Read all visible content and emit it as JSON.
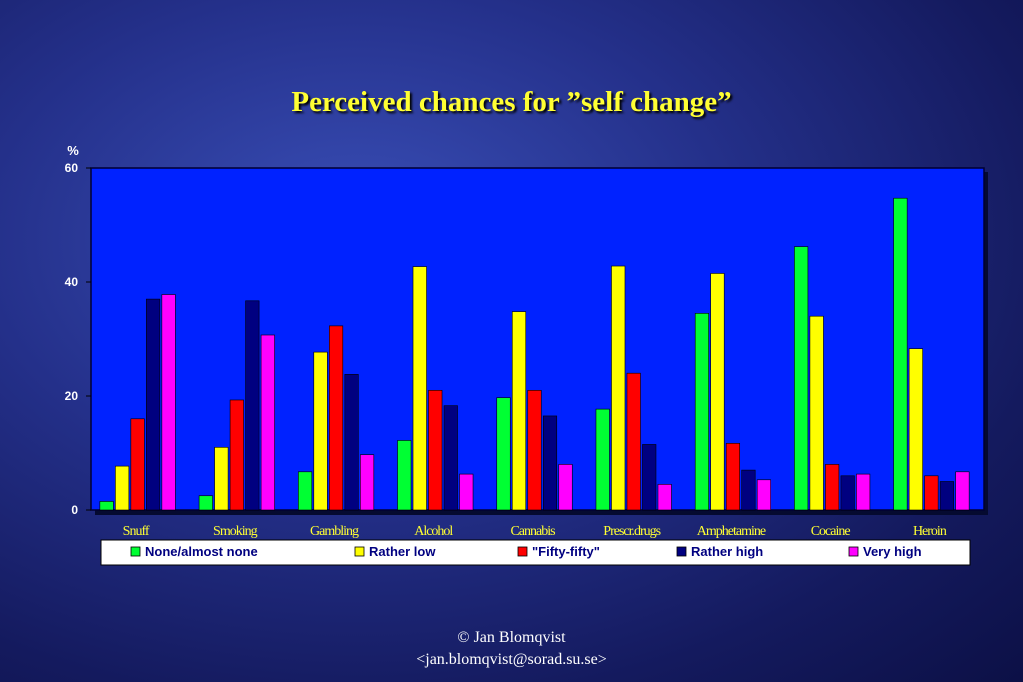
{
  "slide": {
    "title": "Perceived chances for ”self change”"
  },
  "chart_data": {
    "type": "bar",
    "ylabel": "%",
    "ylim": [
      0,
      60
    ],
    "yticks": [
      "0",
      "20",
      "40",
      "60"
    ],
    "categories": [
      "Snuff",
      "Smoking",
      "Gambling",
      "Alcohol",
      "Cannabis",
      "Prescr.drugs",
      "Amphetamine",
      "Cocaine",
      "Heroin"
    ],
    "series": [
      {
        "name": "None/almost none",
        "color": "#00ff33",
        "values": [
          1.5,
          2.5,
          6.7,
          12.2,
          19.7,
          17.7,
          34.5,
          46.2,
          54.7
        ]
      },
      {
        "name": "Rather low",
        "color": "#ffff00",
        "values": [
          7.7,
          11.0,
          27.7,
          42.7,
          34.8,
          42.8,
          41.5,
          34.0,
          28.3
        ]
      },
      {
        "name": "\"Fifty-fifty\"",
        "color": "#ff0000",
        "values": [
          16.0,
          19.3,
          32.3,
          21.0,
          21.0,
          24.0,
          11.7,
          8.0,
          6.0
        ]
      },
      {
        "name": "Rather high",
        "color": "#000080",
        "values": [
          37.0,
          36.7,
          23.8,
          18.3,
          16.5,
          11.5,
          7.0,
          6.0,
          5.0
        ]
      },
      {
        "name": "Very high",
        "color": "#ff00ff",
        "values": [
          37.8,
          30.7,
          9.7,
          6.3,
          8.0,
          4.5,
          5.3,
          6.3,
          6.7
        ]
      }
    ],
    "plot_background": "#0022ff",
    "grid": false,
    "legend_position": "bottom"
  },
  "footer": {
    "line1": "© Jan Blomqvist",
    "line2": "<jan.blomqvist@sorad.su.se>"
  }
}
